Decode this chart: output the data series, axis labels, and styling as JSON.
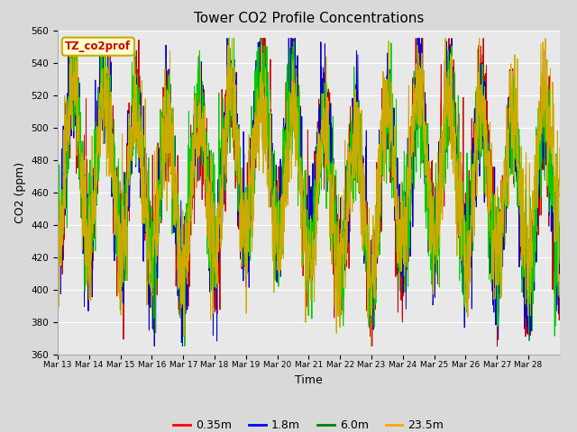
{
  "title": "Tower CO2 Profile Concentrations",
  "xlabel": "Time",
  "ylabel": "CO2 (ppm)",
  "ylim": [
    360,
    560
  ],
  "yticks": [
    360,
    380,
    400,
    420,
    440,
    460,
    480,
    500,
    520,
    540,
    560
  ],
  "series_labels": [
    "0.35m",
    "1.8m",
    "6.0m",
    "23.5m"
  ],
  "series_colors": [
    "#cc0000",
    "#0000cc",
    "#00cc00",
    "#ccaa00"
  ],
  "n_points": 2000,
  "n_days": 16,
  "xtick_labels": [
    "Mar 13",
    "Mar 14",
    "Mar 15",
    "Mar 16",
    "Mar 17",
    "Mar 18",
    "Mar 19",
    "Mar 20",
    "Mar 21",
    "Mar 22",
    "Mar 23",
    "Mar 24",
    "Mar 25",
    "Mar 26",
    "Mar 27",
    "Mar 28"
  ],
  "annotation_text": "TZ_co2prof",
  "annotation_bbox_facecolor": "#ffffcc",
  "annotation_bbox_edgecolor": "#ccaa00",
  "fig_facecolor": "#d9d9d9",
  "plot_bg_color": "#e8e8e8",
  "grid_color": "#ffffff"
}
